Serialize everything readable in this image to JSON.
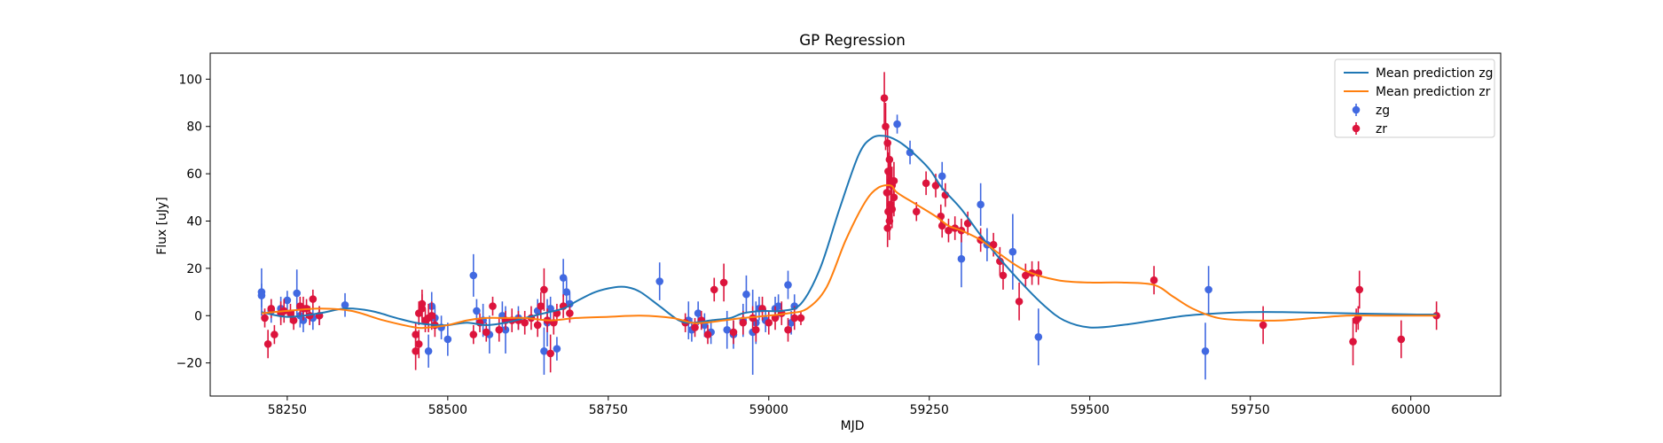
{
  "chart_data": {
    "type": "scatter",
    "title": "GP Regression",
    "xlabel": "MJD",
    "ylabel": "Flux [uJy]",
    "xlim": [
      58130,
      60140
    ],
    "ylim": [
      -34,
      111
    ],
    "xticks": [
      58250,
      58500,
      58750,
      59000,
      59250,
      59500,
      59750,
      60000
    ],
    "yticks": [
      -20,
      0,
      20,
      40,
      60,
      80,
      100
    ],
    "grid": false,
    "legend_position": "top-right",
    "lines": [
      {
        "name": "Mean prediction zg",
        "color": "#1f77b4",
        "x": [
          58210,
          58250,
          58300,
          58340,
          58380,
          58420,
          58450,
          58480,
          58500,
          58530,
          58560,
          58590,
          58620,
          58650,
          58680,
          58700,
          58730,
          58760,
          58780,
          58800,
          58830,
          58860,
          58880,
          58910,
          58940,
          58960,
          58990,
          59020,
          59050,
          59080,
          59110,
          59140,
          59160,
          59180,
          59200,
          59220,
          59250,
          59270,
          59300,
          59330,
          59360,
          59400,
          59430,
          59460,
          59500,
          59550,
          59600,
          59650,
          59700,
          59750,
          59800,
          59900,
          60000,
          60040
        ],
        "y": [
          1.5,
          -0.5,
          1,
          3,
          2,
          -1,
          -3,
          -4,
          -4,
          -3,
          -4,
          -3,
          -1,
          1,
          3,
          6,
          10,
          12,
          12,
          10,
          4,
          -2,
          -3,
          -2,
          -1,
          1,
          2,
          2,
          5,
          20,
          45,
          68,
          75,
          76,
          74,
          70,
          62,
          54,
          45,
          34,
          24,
          12,
          4,
          -2,
          -5,
          -4,
          -2,
          0,
          1,
          1.5,
          1.5,
          1,
          0.5,
          0.5
        ]
      },
      {
        "name": "Mean prediction zr",
        "color": "#ff7f0e",
        "x": [
          58210,
          58250,
          58300,
          58350,
          58400,
          58450,
          58470,
          58500,
          58530,
          58560,
          58590,
          58620,
          58660,
          58700,
          58750,
          58800,
          58850,
          58880,
          58900,
          58930,
          58960,
          59000,
          59030,
          59060,
          59090,
          59120,
          59150,
          59170,
          59190,
          59200,
          59230,
          59260,
          59280,
          59300,
          59330,
          59360,
          59400,
          59450,
          59500,
          59550,
          59600,
          59630,
          59660,
          59700,
          59750,
          59800,
          59850,
          59900,
          59950,
          60000,
          60040
        ],
        "y": [
          1,
          2,
          3,
          2,
          -2,
          -5,
          -5,
          -4,
          -2,
          -1,
          -1,
          -1,
          -2,
          -1,
          -0.5,
          0,
          -1,
          -3,
          -3,
          -2,
          -1,
          0,
          1,
          3,
          12,
          32,
          48,
          54,
          55,
          52,
          47,
          42,
          38,
          36,
          32,
          26,
          19,
          15,
          14,
          14,
          13,
          8,
          3,
          -1,
          -2,
          -2,
          -1,
          0,
          0,
          0,
          0
        ]
      }
    ],
    "series": [
      {
        "name": "zg",
        "color": "#4169e1",
        "points": [
          [
            58210,
            10,
            10
          ],
          [
            58210,
            8.5,
            5
          ],
          [
            58225,
            2,
            5
          ],
          [
            58240,
            3,
            5
          ],
          [
            58250,
            6.5,
            4
          ],
          [
            58265,
            9.5,
            10
          ],
          [
            58270,
            0,
            5
          ],
          [
            58275,
            -2,
            5
          ],
          [
            58290,
            -1,
            5
          ],
          [
            58300,
            0,
            4
          ],
          [
            58340,
            4.5,
            5
          ],
          [
            58470,
            -15,
            7
          ],
          [
            58475,
            4,
            6
          ],
          [
            58480,
            -1,
            5
          ],
          [
            58490,
            -5,
            5
          ],
          [
            58500,
            -10,
            7
          ],
          [
            58540,
            17,
            9
          ],
          [
            58545,
            2,
            5
          ],
          [
            58555,
            -2,
            7
          ],
          [
            58565,
            -8,
            8
          ],
          [
            58585,
            0,
            6
          ],
          [
            58590,
            -6,
            10
          ],
          [
            58610,
            -1,
            5
          ],
          [
            58640,
            2,
            5
          ],
          [
            58650,
            -15,
            10
          ],
          [
            58655,
            -3,
            10
          ],
          [
            58660,
            3,
            5
          ],
          [
            58670,
            -14,
            5
          ],
          [
            58680,
            16,
            8
          ],
          [
            58685,
            10,
            6
          ],
          [
            58690,
            5,
            5
          ],
          [
            58830,
            14.5,
            8
          ],
          [
            58875,
            -2,
            8
          ],
          [
            58880,
            -6,
            5
          ],
          [
            58890,
            1,
            5
          ],
          [
            58900,
            -4,
            5
          ],
          [
            58910,
            -7,
            5
          ],
          [
            58935,
            -6,
            8
          ],
          [
            58945,
            -8,
            6
          ],
          [
            58960,
            -2,
            7
          ],
          [
            58965,
            9,
            8
          ],
          [
            58975,
            -7,
            18
          ],
          [
            58980,
            -3,
            9
          ],
          [
            58985,
            3,
            5
          ],
          [
            58995,
            -2,
            5
          ],
          [
            59010,
            3,
            5
          ],
          [
            59015,
            4,
            5
          ],
          [
            59030,
            13,
            6
          ],
          [
            59035,
            -3,
            5
          ],
          [
            59040,
            4,
            5
          ],
          [
            59200,
            81,
            4
          ],
          [
            59220,
            69,
            5
          ],
          [
            59270,
            59,
            6
          ],
          [
            59330,
            47,
            9
          ],
          [
            59340,
            30,
            7
          ],
          [
            59380,
            27,
            16
          ],
          [
            59300,
            24,
            12
          ],
          [
            59420,
            -9,
            12
          ],
          [
            59685,
            11,
            10
          ],
          [
            59680,
            -15,
            12
          ]
        ]
      },
      {
        "name": "zr",
        "color": "#dc143c",
        "points": [
          [
            58215,
            -1,
            4
          ],
          [
            58220,
            -12,
            6
          ],
          [
            58230,
            -8,
            4
          ],
          [
            58225,
            3,
            4
          ],
          [
            58240,
            1,
            5
          ],
          [
            58245,
            2,
            5
          ],
          [
            58255,
            1,
            4
          ],
          [
            58260,
            -2,
            4
          ],
          [
            58270,
            4,
            4
          ],
          [
            58275,
            3,
            5
          ],
          [
            58280,
            3,
            4
          ],
          [
            58285,
            0,
            4
          ],
          [
            58290,
            7,
            4
          ],
          [
            58300,
            0,
            4
          ],
          [
            58450,
            -8,
            5
          ],
          [
            58450,
            -15,
            8
          ],
          [
            58455,
            -12,
            6
          ],
          [
            58455,
            1,
            5
          ],
          [
            58460,
            3,
            6
          ],
          [
            58460,
            5,
            6
          ],
          [
            58465,
            -2,
            5
          ],
          [
            58470,
            -1,
            6
          ],
          [
            58475,
            0,
            6
          ],
          [
            58480,
            -4,
            5
          ],
          [
            58540,
            -8,
            4
          ],
          [
            58550,
            -3,
            4
          ],
          [
            58560,
            -7,
            4
          ],
          [
            58570,
            4,
            4
          ],
          [
            58580,
            -6,
            5
          ],
          [
            58590,
            -2,
            4
          ],
          [
            58600,
            -2,
            5
          ],
          [
            58610,
            -2,
            4
          ],
          [
            58620,
            -3,
            5
          ],
          [
            58630,
            -1,
            5
          ],
          [
            58640,
            -4,
            5
          ],
          [
            58645,
            4,
            6
          ],
          [
            58650,
            11,
            9
          ],
          [
            58655,
            -2,
            5
          ],
          [
            58660,
            -16,
            8
          ],
          [
            58665,
            -3,
            5
          ],
          [
            58670,
            1,
            4
          ],
          [
            58680,
            4,
            5
          ],
          [
            58690,
            1,
            4
          ],
          [
            58870,
            -3,
            4
          ],
          [
            58885,
            -5,
            4
          ],
          [
            58895,
            -2,
            4
          ],
          [
            58905,
            -8,
            4
          ],
          [
            58915,
            11,
            5
          ],
          [
            58930,
            14,
            8
          ],
          [
            58945,
            -7,
            5
          ],
          [
            58960,
            -3,
            5
          ],
          [
            58975,
            -1,
            5
          ],
          [
            58980,
            -6,
            5
          ],
          [
            58990,
            3,
            5
          ],
          [
            59000,
            -3,
            5
          ],
          [
            59010,
            -1,
            5
          ],
          [
            59020,
            1,
            5
          ],
          [
            59030,
            -6,
            5
          ],
          [
            59040,
            -1,
            5
          ],
          [
            59050,
            -1,
            3
          ],
          [
            59180,
            92,
            11
          ],
          [
            59182,
            80,
            10
          ],
          [
            59185,
            73,
            8
          ],
          [
            59188,
            66,
            8
          ],
          [
            59186,
            61,
            8
          ],
          [
            59190,
            57,
            8
          ],
          [
            59192,
            55,
            8
          ],
          [
            59184,
            52,
            8
          ],
          [
            59190,
            47,
            8
          ],
          [
            59186,
            44,
            8
          ],
          [
            59188,
            40,
            8
          ],
          [
            59185,
            37,
            8
          ],
          [
            59195,
            50,
            8
          ],
          [
            59192,
            45,
            8
          ],
          [
            59195,
            57,
            8
          ],
          [
            59230,
            44,
            4
          ],
          [
            59245,
            56,
            5
          ],
          [
            59260,
            55,
            5
          ],
          [
            59268,
            42,
            5
          ],
          [
            59270,
            38,
            5
          ],
          [
            59275,
            51,
            5
          ],
          [
            59280,
            36,
            5
          ],
          [
            59290,
            37,
            5
          ],
          [
            59300,
            36,
            5
          ],
          [
            59310,
            39,
            5
          ],
          [
            59330,
            32,
            5
          ],
          [
            59350,
            30,
            5
          ],
          [
            59360,
            23,
            6
          ],
          [
            59365,
            17,
            6
          ],
          [
            59390,
            6,
            8
          ],
          [
            59400,
            17,
            5
          ],
          [
            59410,
            18,
            5
          ],
          [
            59420,
            18,
            5
          ],
          [
            59600,
            15,
            6
          ],
          [
            59770,
            -4,
            8
          ],
          [
            59910,
            -11,
            10
          ],
          [
            59915,
            -2,
            5
          ],
          [
            59918,
            -1,
            5
          ],
          [
            59920,
            11,
            8
          ],
          [
            59985,
            -10,
            8
          ],
          [
            60040,
            0,
            6
          ]
        ]
      }
    ]
  }
}
